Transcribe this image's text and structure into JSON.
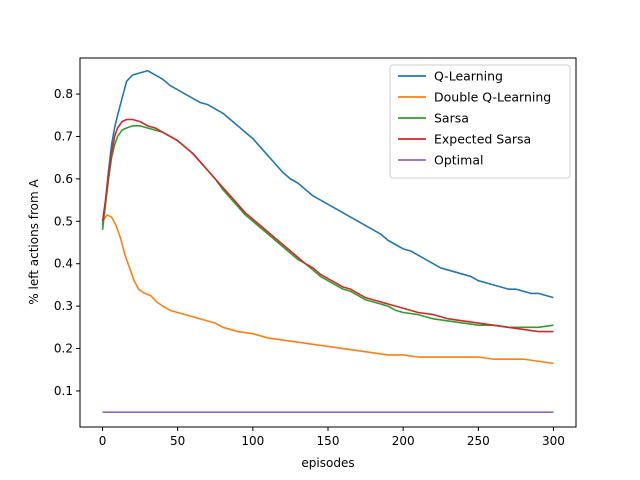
{
  "chart_data": {
    "type": "line",
    "xlabel": "episodes",
    "ylabel": "% left actions from A",
    "xlim": [
      -15,
      315
    ],
    "ylim": [
      0.015,
      0.885
    ],
    "xticks": [
      0,
      50,
      100,
      150,
      200,
      250,
      300
    ],
    "yticks": [
      0.1,
      0.2,
      0.3,
      0.4,
      0.5,
      0.6,
      0.7,
      0.8
    ],
    "grid": false,
    "legend_position": "top-right",
    "series": [
      {
        "name": "Q-Learning",
        "color": "#1f77b4",
        "points": [
          [
            0,
            0.49
          ],
          [
            2,
            0.55
          ],
          [
            4,
            0.62
          ],
          [
            6,
            0.68
          ],
          [
            8,
            0.72
          ],
          [
            10,
            0.75
          ],
          [
            13,
            0.79
          ],
          [
            16,
            0.83
          ],
          [
            20,
            0.845
          ],
          [
            25,
            0.85
          ],
          [
            30,
            0.855
          ],
          [
            35,
            0.845
          ],
          [
            40,
            0.835
          ],
          [
            45,
            0.82
          ],
          [
            50,
            0.81
          ],
          [
            55,
            0.8
          ],
          [
            60,
            0.79
          ],
          [
            65,
            0.78
          ],
          [
            70,
            0.775
          ],
          [
            75,
            0.765
          ],
          [
            80,
            0.755
          ],
          [
            85,
            0.74
          ],
          [
            90,
            0.725
          ],
          [
            95,
            0.71
          ],
          [
            100,
            0.695
          ],
          [
            105,
            0.675
          ],
          [
            110,
            0.655
          ],
          [
            115,
            0.635
          ],
          [
            120,
            0.615
          ],
          [
            125,
            0.6
          ],
          [
            130,
            0.59
          ],
          [
            135,
            0.575
          ],
          [
            140,
            0.56
          ],
          [
            145,
            0.55
          ],
          [
            150,
            0.54
          ],
          [
            155,
            0.53
          ],
          [
            160,
            0.52
          ],
          [
            165,
            0.51
          ],
          [
            170,
            0.5
          ],
          [
            175,
            0.49
          ],
          [
            180,
            0.48
          ],
          [
            185,
            0.47
          ],
          [
            190,
            0.455
          ],
          [
            195,
            0.445
          ],
          [
            200,
            0.435
          ],
          [
            205,
            0.43
          ],
          [
            210,
            0.42
          ],
          [
            215,
            0.41
          ],
          [
            220,
            0.4
          ],
          [
            225,
            0.39
          ],
          [
            230,
            0.385
          ],
          [
            235,
            0.38
          ],
          [
            240,
            0.375
          ],
          [
            245,
            0.37
          ],
          [
            250,
            0.36
          ],
          [
            255,
            0.355
          ],
          [
            260,
            0.35
          ],
          [
            265,
            0.345
          ],
          [
            270,
            0.34
          ],
          [
            275,
            0.34
          ],
          [
            280,
            0.335
          ],
          [
            285,
            0.33
          ],
          [
            290,
            0.33
          ],
          [
            295,
            0.325
          ],
          [
            300,
            0.32
          ]
        ]
      },
      {
        "name": "Double Q-Learning",
        "color": "#ff7f0e",
        "points": [
          [
            0,
            0.5
          ],
          [
            3,
            0.515
          ],
          [
            6,
            0.51
          ],
          [
            9,
            0.49
          ],
          [
            12,
            0.46
          ],
          [
            15,
            0.42
          ],
          [
            18,
            0.39
          ],
          [
            21,
            0.36
          ],
          [
            24,
            0.34
          ],
          [
            28,
            0.33
          ],
          [
            32,
            0.325
          ],
          [
            36,
            0.31
          ],
          [
            40,
            0.3
          ],
          [
            45,
            0.29
          ],
          [
            50,
            0.285
          ],
          [
            55,
            0.28
          ],
          [
            60,
            0.275
          ],
          [
            65,
            0.27
          ],
          [
            70,
            0.265
          ],
          [
            75,
            0.26
          ],
          [
            80,
            0.25
          ],
          [
            90,
            0.24
          ],
          [
            100,
            0.235
          ],
          [
            110,
            0.225
          ],
          [
            120,
            0.22
          ],
          [
            130,
            0.215
          ],
          [
            140,
            0.21
          ],
          [
            150,
            0.205
          ],
          [
            160,
            0.2
          ],
          [
            170,
            0.195
          ],
          [
            180,
            0.19
          ],
          [
            190,
            0.185
          ],
          [
            200,
            0.185
          ],
          [
            210,
            0.18
          ],
          [
            220,
            0.18
          ],
          [
            230,
            0.18
          ],
          [
            240,
            0.18
          ],
          [
            250,
            0.18
          ],
          [
            260,
            0.175
          ],
          [
            270,
            0.175
          ],
          [
            280,
            0.175
          ],
          [
            290,
            0.17
          ],
          [
            300,
            0.165
          ]
        ]
      },
      {
        "name": "Sarsa",
        "color": "#2ca02c",
        "points": [
          [
            0,
            0.48
          ],
          [
            2,
            0.54
          ],
          [
            4,
            0.6
          ],
          [
            6,
            0.65
          ],
          [
            8,
            0.68
          ],
          [
            10,
            0.7
          ],
          [
            13,
            0.715
          ],
          [
            16,
            0.72
          ],
          [
            20,
            0.725
          ],
          [
            25,
            0.725
          ],
          [
            30,
            0.72
          ],
          [
            35,
            0.715
          ],
          [
            40,
            0.71
          ],
          [
            45,
            0.7
          ],
          [
            50,
            0.69
          ],
          [
            55,
            0.675
          ],
          [
            60,
            0.66
          ],
          [
            65,
            0.64
          ],
          [
            70,
            0.62
          ],
          [
            75,
            0.6
          ],
          [
            80,
            0.575
          ],
          [
            85,
            0.555
          ],
          [
            90,
            0.535
          ],
          [
            95,
            0.515
          ],
          [
            100,
            0.5
          ],
          [
            105,
            0.485
          ],
          [
            110,
            0.47
          ],
          [
            115,
            0.455
          ],
          [
            120,
            0.44
          ],
          [
            125,
            0.425
          ],
          [
            130,
            0.41
          ],
          [
            135,
            0.4
          ],
          [
            140,
            0.385
          ],
          [
            145,
            0.37
          ],
          [
            150,
            0.36
          ],
          [
            155,
            0.35
          ],
          [
            160,
            0.34
          ],
          [
            165,
            0.335
          ],
          [
            170,
            0.325
          ],
          [
            175,
            0.315
          ],
          [
            180,
            0.31
          ],
          [
            185,
            0.305
          ],
          [
            190,
            0.3
          ],
          [
            195,
            0.29
          ],
          [
            200,
            0.285
          ],
          [
            210,
            0.28
          ],
          [
            220,
            0.27
          ],
          [
            230,
            0.265
          ],
          [
            240,
            0.26
          ],
          [
            250,
            0.255
          ],
          [
            260,
            0.255
          ],
          [
            270,
            0.25
          ],
          [
            280,
            0.25
          ],
          [
            290,
            0.25
          ],
          [
            300,
            0.255
          ]
        ]
      },
      {
        "name": "Expected Sarsa",
        "color": "#d62728",
        "points": [
          [
            0,
            0.5
          ],
          [
            2,
            0.55
          ],
          [
            4,
            0.61
          ],
          [
            6,
            0.66
          ],
          [
            8,
            0.7
          ],
          [
            10,
            0.72
          ],
          [
            13,
            0.735
          ],
          [
            16,
            0.74
          ],
          [
            20,
            0.74
          ],
          [
            25,
            0.735
          ],
          [
            30,
            0.725
          ],
          [
            35,
            0.72
          ],
          [
            40,
            0.71
          ],
          [
            45,
            0.7
          ],
          [
            50,
            0.69
          ],
          [
            55,
            0.675
          ],
          [
            60,
            0.66
          ],
          [
            65,
            0.64
          ],
          [
            70,
            0.62
          ],
          [
            75,
            0.6
          ],
          [
            80,
            0.58
          ],
          [
            85,
            0.56
          ],
          [
            90,
            0.54
          ],
          [
            95,
            0.52
          ],
          [
            100,
            0.505
          ],
          [
            105,
            0.49
          ],
          [
            110,
            0.475
          ],
          [
            115,
            0.46
          ],
          [
            120,
            0.445
          ],
          [
            125,
            0.43
          ],
          [
            130,
            0.415
          ],
          [
            135,
            0.4
          ],
          [
            140,
            0.39
          ],
          [
            145,
            0.375
          ],
          [
            150,
            0.365
          ],
          [
            155,
            0.355
          ],
          [
            160,
            0.345
          ],
          [
            165,
            0.34
          ],
          [
            170,
            0.33
          ],
          [
            175,
            0.32
          ],
          [
            180,
            0.315
          ],
          [
            185,
            0.31
          ],
          [
            190,
            0.305
          ],
          [
            195,
            0.3
          ],
          [
            200,
            0.295
          ],
          [
            210,
            0.285
          ],
          [
            220,
            0.28
          ],
          [
            230,
            0.27
          ],
          [
            240,
            0.265
          ],
          [
            250,
            0.26
          ],
          [
            260,
            0.255
          ],
          [
            270,
            0.25
          ],
          [
            280,
            0.245
          ],
          [
            290,
            0.24
          ],
          [
            300,
            0.24
          ]
        ]
      },
      {
        "name": "Optimal",
        "color": "#9467bd",
        "points": [
          [
            0,
            0.05
          ],
          [
            300,
            0.05
          ]
        ]
      }
    ]
  }
}
